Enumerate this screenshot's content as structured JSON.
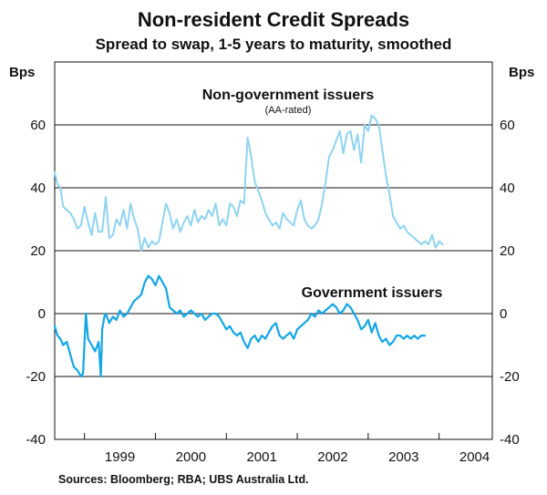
{
  "chart_data": {
    "type": "line",
    "title": "Non-resident Credit Spreads",
    "subtitle": "Spread to swap, 1-5 years to maturity, smoothed",
    "ylabel_left": "Bps",
    "ylabel_right": "Bps",
    "ylim": [
      -40,
      80
    ],
    "y_ticks": [
      60,
      40,
      20,
      0,
      -20,
      -40
    ],
    "x_range": [
      1998.58,
      2004.75
    ],
    "x_ticks": [
      "1999",
      "2000",
      "2001",
      "2002",
      "2003",
      "2004"
    ],
    "grid": true,
    "source": "Sources: Bloomberg; RBA; UBS Australia Ltd.",
    "series": [
      {
        "name": "Non-government issuers",
        "note": "(AA-rated)",
        "color": "#8fd3f0",
        "x": [
          1998.58,
          1998.62,
          1998.66,
          1998.7,
          1998.75,
          1998.8,
          1998.85,
          1998.9,
          1998.95,
          1999.0,
          1999.05,
          1999.1,
          1999.15,
          1999.2,
          1999.25,
          1999.3,
          1999.35,
          1999.4,
          1999.45,
          1999.5,
          1999.55,
          1999.6,
          1999.65,
          1999.7,
          1999.75,
          1999.8,
          1999.85,
          1999.9,
          1999.95,
          2000.0,
          2000.05,
          2000.1,
          2000.15,
          2000.2,
          2000.25,
          2000.3,
          2000.35,
          2000.4,
          2000.45,
          2000.5,
          2000.55,
          2000.6,
          2000.65,
          2000.7,
          2000.75,
          2000.8,
          2000.85,
          2000.9,
          2000.95,
          2001.0,
          2001.05,
          2001.1,
          2001.15,
          2001.2,
          2001.25,
          2001.3,
          2001.35,
          2001.4,
          2001.45,
          2001.5,
          2001.55,
          2001.6,
          2001.65,
          2001.7,
          2001.75,
          2001.8,
          2001.85,
          2001.9,
          2001.95,
          2002.0,
          2002.05,
          2002.1,
          2002.15,
          2002.2,
          2002.25,
          2002.3,
          2002.35,
          2002.4,
          2002.45,
          2002.5,
          2002.55,
          2002.6,
          2002.65,
          2002.7,
          2002.75,
          2002.8,
          2002.85,
          2002.9,
          2002.95,
          2003.0,
          2003.05,
          2003.1,
          2003.15,
          2003.2,
          2003.25,
          2003.3,
          2003.35,
          2003.4,
          2003.45,
          2003.5,
          2003.55,
          2003.6,
          2003.65,
          2003.7,
          2003.75,
          2003.8,
          2003.85,
          2003.9,
          2003.95,
          2004.0,
          2004.05
        ],
        "values": [
          45,
          41,
          40,
          34,
          33,
          32,
          30,
          27,
          28,
          34,
          29,
          25,
          32,
          26,
          26,
          37,
          24,
          25,
          30,
          28,
          33,
          27,
          35,
          30,
          27,
          20,
          24,
          21,
          23,
          22,
          23,
          29,
          35,
          32,
          27,
          30,
          26,
          29,
          31,
          28,
          33,
          29,
          31,
          30,
          33,
          31,
          35,
          28,
          30,
          28,
          35,
          34,
          31,
          36,
          35,
          56,
          50,
          42,
          39,
          36,
          32,
          30,
          28,
          29,
          27,
          32,
          30,
          29,
          28,
          33,
          36,
          30,
          28,
          27,
          28,
          30,
          35,
          42,
          50,
          52,
          55,
          58,
          51,
          57,
          58,
          52,
          57,
          48,
          60,
          58,
          63,
          62,
          60,
          52,
          44,
          38,
          31,
          29,
          27,
          28,
          26,
          25,
          24,
          23,
          22,
          23,
          22,
          25,
          21,
          23,
          22
        ]
      },
      {
        "name": "Government issuers",
        "note": "",
        "color": "#13a6e6",
        "x": [
          1998.58,
          1998.62,
          1998.66,
          1998.7,
          1998.75,
          1998.8,
          1998.85,
          1998.9,
          1998.95,
          1998.98,
          1999.02,
          1999.05,
          1999.1,
          1999.15,
          1999.2,
          1999.23,
          1999.25,
          1999.28,
          1999.3,
          1999.35,
          1999.4,
          1999.45,
          1999.5,
          1999.55,
          1999.6,
          1999.65,
          1999.7,
          1999.75,
          1999.8,
          1999.85,
          1999.9,
          1999.95,
          2000.0,
          2000.05,
          2000.1,
          2000.15,
          2000.2,
          2000.25,
          2000.3,
          2000.35,
          2000.4,
          2000.45,
          2000.5,
          2000.55,
          2000.6,
          2000.65,
          2000.7,
          2000.75,
          2000.8,
          2000.85,
          2000.9,
          2000.95,
          2001.0,
          2001.05,
          2001.1,
          2001.15,
          2001.2,
          2001.25,
          2001.3,
          2001.35,
          2001.4,
          2001.45,
          2001.5,
          2001.55,
          2001.6,
          2001.65,
          2001.7,
          2001.75,
          2001.8,
          2001.85,
          2001.9,
          2001.95,
          2002.0,
          2002.05,
          2002.1,
          2002.15,
          2002.2,
          2002.25,
          2002.3,
          2002.35,
          2002.4,
          2002.45,
          2002.5,
          2002.55,
          2002.6,
          2002.65,
          2002.7,
          2002.75,
          2002.8,
          2002.85,
          2002.9,
          2002.95,
          2003.0,
          2003.05,
          2003.1,
          2003.15,
          2003.2,
          2003.25,
          2003.3,
          2003.35,
          2003.4,
          2003.45,
          2003.5,
          2003.55,
          2003.6,
          2003.65,
          2003.7,
          2003.75,
          2003.8
        ],
        "values": [
          -4,
          -7,
          -8,
          -10,
          -9,
          -13,
          -17,
          -18,
          -20,
          -19,
          0,
          -8,
          -10,
          -12,
          -9,
          -20,
          -5,
          -1,
          0,
          -3,
          -1,
          -2,
          1,
          -1,
          0,
          2,
          4,
          5,
          6,
          10,
          12,
          11,
          9,
          12,
          10,
          8,
          2,
          1,
          0,
          1,
          -1,
          0,
          1,
          0,
          -1,
          0,
          -2,
          -1,
          0,
          0,
          -1,
          -3,
          -5,
          -4,
          -6,
          -7,
          -6,
          -9,
          -11,
          -8,
          -7,
          -9,
          -7,
          -8,
          -6,
          -4,
          -3,
          -7,
          -8,
          -7,
          -6,
          -8,
          -5,
          -4,
          -3,
          -2,
          0,
          -1,
          1,
          0,
          1,
          2,
          3,
          2,
          0,
          1,
          3,
          2,
          0,
          -2,
          -5,
          -4,
          -2,
          -6,
          -3,
          -7,
          -9,
          -8,
          -10,
          -9,
          -7,
          -7,
          -8,
          -7,
          -8,
          -7,
          -8,
          -7,
          -7
        ]
      }
    ]
  }
}
